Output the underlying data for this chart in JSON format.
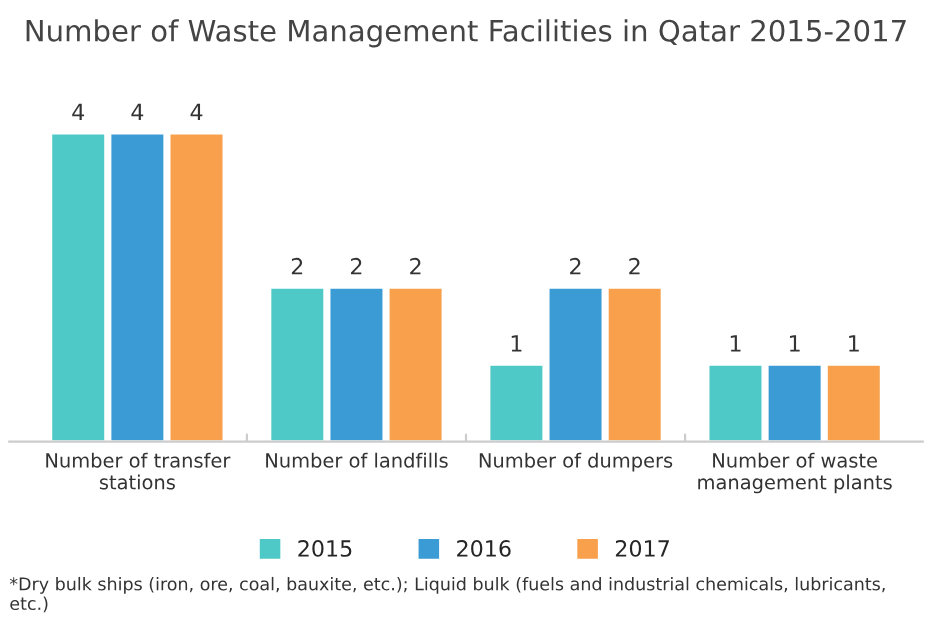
{
  "chart_data": {
    "type": "bar",
    "title": "Number of Waste Management Facilities in Qatar 2015-2017",
    "categories": [
      "Number of transfer\nstations",
      "Number of landfills",
      "Number of dumpers",
      "Number of waste\nmanagement plants"
    ],
    "series": [
      {
        "name": "2015",
        "color": "#4fc8c8",
        "values": [
          4,
          2,
          1,
          1
        ]
      },
      {
        "name": "2016",
        "color": "#3a9bd5",
        "values": [
          4,
          2,
          2,
          1
        ]
      },
      {
        "name": "2017",
        "color": "#f8a04b",
        "values": [
          4,
          2,
          2,
          1
        ]
      }
    ],
    "data_labels": true,
    "legend": "bottom",
    "grid": false,
    "tick_labels": "x",
    "annotations": [
      "*Dry bulk ships (iron, ore, coal, bauxite, etc.); Liquid bulk (fuels and industrial chemicals, lubricants, etc.)"
    ]
  }
}
